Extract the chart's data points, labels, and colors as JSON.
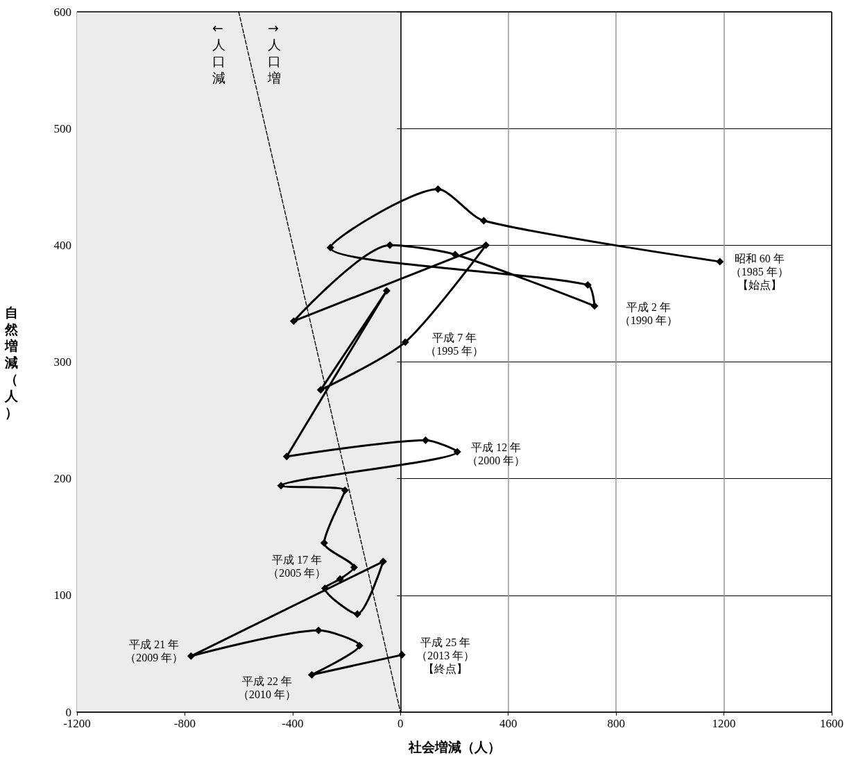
{
  "chart_data": {
    "type": "line",
    "xlabel": "社会増減（人）",
    "ylabel": "自然増減（人）",
    "xlim": [
      -1200,
      1600
    ],
    "xticks": [
      -1200,
      -800,
      -400,
      0,
      400,
      800,
      1200,
      1600
    ],
    "ylim": [
      0,
      600
    ],
    "yticks": [
      0,
      100,
      200,
      300,
      400,
      500,
      600
    ],
    "grid": true,
    "marker": "diamond",
    "bands": [
      {
        "axis": "x",
        "from": -1200,
        "to": 0,
        "color": "#ececec"
      }
    ],
    "series": [
      {
        "color": "#000000",
        "x": [
          1185,
          309,
          139,
          -260,
          695,
          720,
          203,
          -39,
          -396,
          317,
          18,
          -296,
          -51,
          -422,
          93,
          211,
          -443,
          -206,
          -283,
          -172,
          -224,
          -280,
          -160,
          -64,
          -777,
          -304,
          -152,
          -329,
          5
        ],
        "values": [
          386,
          421,
          448,
          398,
          366,
          348,
          392,
          400,
          335,
          400,
          317,
          276,
          361,
          219,
          233,
          223,
          194,
          190,
          145,
          124,
          114,
          106,
          84,
          129,
          48,
          70,
          57,
          32,
          49
        ]
      },
      {
        "color": "#000000",
        "line_style": "dashed",
        "marker": "none",
        "x": [
          -600,
          0
        ],
        "values": [
          600,
          0
        ]
      }
    ],
    "annotations": [
      "←人口減",
      "→人口増",
      {
        "text": "昭和 60 年（1985 年）【始点】",
        "x": 1185,
        "y": 386
      },
      {
        "text": "平成 2 年（1990 年）",
        "x": 720,
        "y": 348
      },
      {
        "text": "平成 7 年（1995 年）",
        "x": 18,
        "y": 317
      },
      {
        "text": "平成 12 年（2000 年）",
        "x": 211,
        "y": 223
      },
      {
        "text": "平成 17 年（2005 年）",
        "x": -224,
        "y": 114
      },
      {
        "text": "平成 21 年（2009 年）",
        "x": -777,
        "y": 48
      },
      "平成 22 年（2010 年）",
      {
        "text": "平成 25 年（2013 年）【終点】",
        "x": 5,
        "y": 49
      }
    ]
  }
}
